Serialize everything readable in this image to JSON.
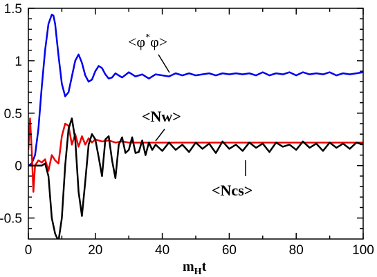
{
  "chart_data": {
    "type": "line",
    "xlabel": "m",
    "xlabel_sub": "H",
    "xlabel_tail": "t",
    "ylabel": "",
    "xlim": [
      0,
      100
    ],
    "ylim": [
      -0.7,
      1.5
    ],
    "xticks": [
      0,
      20,
      40,
      60,
      80,
      100
    ],
    "xtick_labels": [
      "0",
      "20",
      "40",
      "60",
      "80",
      "100"
    ],
    "yticks": [
      -0.5,
      0,
      0.5,
      1,
      1.5
    ],
    "ytick_labels": [
      "-0.5",
      "0",
      "0.5",
      "1",
      "1.5"
    ],
    "grid": false,
    "legend": "none",
    "annotations": [
      {
        "text": "<φ*φ>",
        "text_parts": [
          "<φ",
          "*",
          "φ>"
        ],
        "bold": false,
        "points_to_series": "phi"
      },
      {
        "text": "<Nw>",
        "bold": true,
        "points_to_series": "nw"
      },
      {
        "text": "<Ncs>",
        "bold": true,
        "points_to_series": "ncs"
      }
    ],
    "series": [
      {
        "id": "phi",
        "color": "#0000ee",
        "x": [
          0,
          1,
          2,
          3,
          4,
          5,
          6,
          7,
          7.5,
          8,
          9,
          10,
          11,
          12,
          13,
          14,
          15,
          16,
          17,
          18,
          19,
          20,
          21,
          22,
          23,
          24,
          25,
          26,
          28,
          30,
          32,
          34,
          36,
          38,
          40,
          42,
          44,
          46,
          48,
          50,
          52,
          54,
          56,
          58,
          60,
          62,
          64,
          66,
          68,
          70,
          72,
          74,
          76,
          78,
          80,
          82,
          84,
          86,
          88,
          90,
          92,
          94,
          96,
          98,
          100
        ],
        "y": [
          0.0,
          0.02,
          0.1,
          0.35,
          0.75,
          1.1,
          1.35,
          1.44,
          1.43,
          1.35,
          1.05,
          0.78,
          0.66,
          0.7,
          0.85,
          1.0,
          1.06,
          0.98,
          0.86,
          0.8,
          0.82,
          0.9,
          0.95,
          0.93,
          0.87,
          0.83,
          0.84,
          0.88,
          0.84,
          0.89,
          0.85,
          0.87,
          0.83,
          0.87,
          0.86,
          0.85,
          0.88,
          0.86,
          0.88,
          0.86,
          0.87,
          0.88,
          0.86,
          0.88,
          0.87,
          0.88,
          0.87,
          0.88,
          0.86,
          0.89,
          0.86,
          0.88,
          0.87,
          0.89,
          0.86,
          0.89,
          0.87,
          0.88,
          0.87,
          0.89,
          0.86,
          0.88,
          0.87,
          0.88,
          0.89
        ]
      },
      {
        "id": "nw",
        "color": "#ee0000",
        "x": [
          0,
          0.5,
          1,
          1.5,
          2,
          3,
          4,
          5,
          6,
          7,
          8,
          9,
          10,
          11,
          12,
          13,
          14,
          15,
          16,
          17,
          18,
          19,
          20,
          22,
          24,
          26,
          28,
          30,
          35,
          40,
          50,
          60,
          70,
          80,
          90,
          100
        ],
        "y": [
          0.15,
          0.45,
          0.15,
          -0.25,
          0.0,
          0.05,
          0.03,
          0.06,
          -0.05,
          0.1,
          0.05,
          0.02,
          0.28,
          0.4,
          0.38,
          0.2,
          0.3,
          0.18,
          0.28,
          0.2,
          0.26,
          0.22,
          0.25,
          0.23,
          0.24,
          0.22,
          0.23,
          0.22,
          0.22,
          0.22,
          0.22,
          0.22,
          0.22,
          0.22,
          0.22,
          0.22
        ]
      },
      {
        "id": "ncs",
        "color": "#000000",
        "x": [
          0,
          2,
          4,
          5,
          6,
          7,
          8,
          9,
          10,
          11,
          12,
          13,
          14,
          15,
          16,
          17,
          18,
          19,
          20,
          21,
          22,
          23,
          24,
          25,
          26,
          27,
          28,
          29,
          30,
          31,
          32,
          33,
          34,
          35,
          36,
          37,
          38,
          40,
          42,
          44,
          46,
          48,
          50,
          52,
          54,
          56,
          58,
          60,
          62,
          64,
          66,
          68,
          70,
          72,
          74,
          76,
          78,
          80,
          82,
          84,
          86,
          88,
          90,
          92,
          94,
          96,
          98,
          100
        ],
        "y": [
          0.0,
          0.0,
          0.0,
          0.02,
          -0.1,
          -0.5,
          -0.65,
          -0.72,
          -0.5,
          0.0,
          0.35,
          0.45,
          0.25,
          -0.25,
          -0.48,
          -0.15,
          0.2,
          0.3,
          0.25,
          0.08,
          -0.1,
          0.25,
          0.28,
          0.05,
          -0.12,
          0.2,
          0.27,
          0.12,
          0.15,
          0.27,
          0.12,
          0.13,
          0.24,
          0.1,
          0.22,
          0.15,
          0.2,
          0.14,
          0.22,
          0.15,
          0.2,
          0.13,
          0.22,
          0.16,
          0.21,
          0.12,
          0.23,
          0.16,
          0.2,
          0.14,
          0.22,
          0.17,
          0.21,
          0.13,
          0.22,
          0.18,
          0.2,
          0.15,
          0.23,
          0.17,
          0.21,
          0.14,
          0.22,
          0.17,
          0.21,
          0.16,
          0.22,
          0.2
        ]
      }
    ]
  }
}
